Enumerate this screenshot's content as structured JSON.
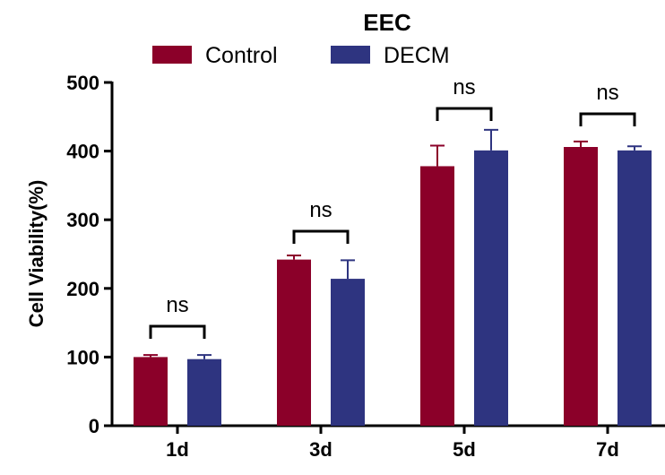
{
  "chart_data": {
    "type": "bar",
    "title": "EEC",
    "xlabel": "",
    "ylabel": "Cell Viability(%)",
    "categories": [
      "1d",
      "3d",
      "5d",
      "7d"
    ],
    "ylim": [
      0,
      500
    ],
    "yticks": [
      0,
      100,
      200,
      300,
      400,
      500
    ],
    "legend_position": "top",
    "series": [
      {
        "name": "Control",
        "color": "#8b0029",
        "values": [
          100,
          242,
          378,
          406
        ],
        "errors": [
          3,
          6,
          30,
          8
        ]
      },
      {
        "name": "DECM",
        "color": "#2e3480",
        "values": [
          97,
          214,
          401,
          401
        ],
        "errors": [
          6,
          27,
          30,
          6
        ]
      }
    ],
    "annotations": [
      "ns",
      "ns",
      "ns",
      "ns"
    ]
  }
}
